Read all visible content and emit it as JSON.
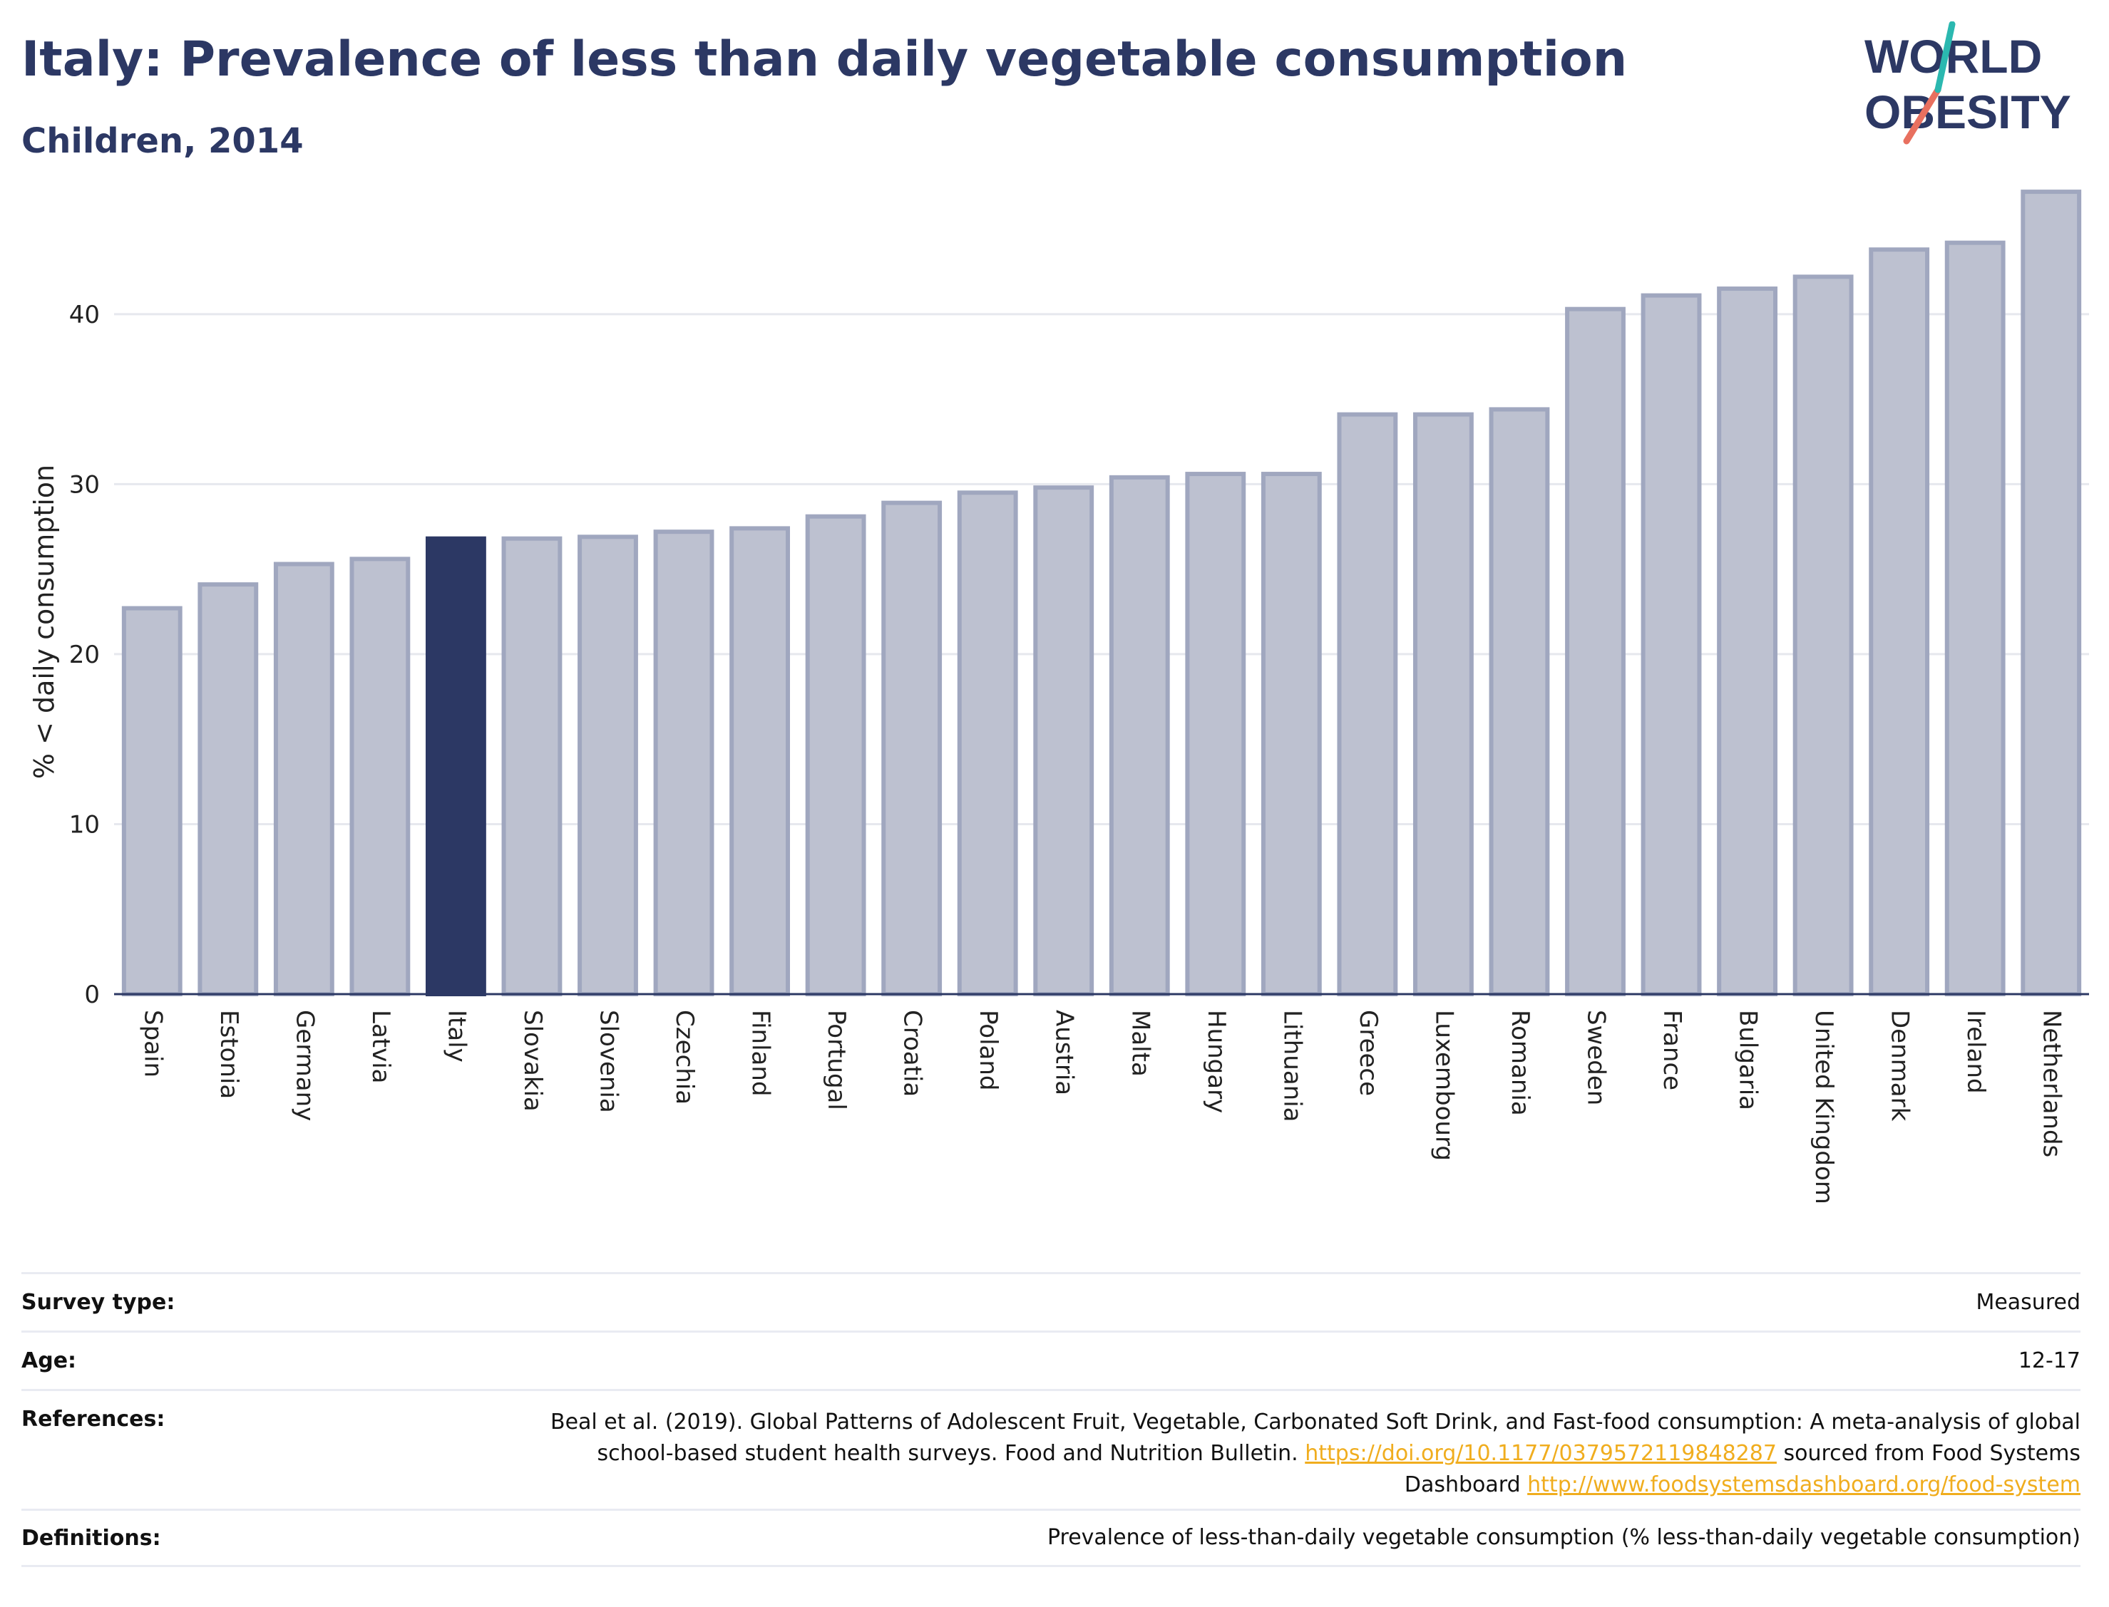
{
  "header": {
    "title": "Italy: Prevalence of less than daily vegetable consumption",
    "subtitle": "Children, 2014"
  },
  "logo": {
    "line1": "WORLD",
    "line2": "OBESITY",
    "navy": "#2c3864",
    "teal": "#2bb8b0",
    "coral": "#e8705f"
  },
  "chart_data": {
    "type": "bar",
    "ylabel": "% < daily consumption",
    "xlabel": "",
    "ylim": [
      0,
      48
    ],
    "yticks": [
      0,
      10,
      20,
      30,
      40
    ],
    "grid": true,
    "highlight": "Italy",
    "colors": {
      "bar": "#bdc1d0",
      "bar_edge": "#a0a7bf",
      "highlight": "#2c3864"
    },
    "categories": [
      "Spain",
      "Estonia",
      "Germany",
      "Latvia",
      "Italy",
      "Slovakia",
      "Slovenia",
      "Czechia",
      "Finland",
      "Portugal",
      "Croatia",
      "Poland",
      "Austria",
      "Malta",
      "Hungary",
      "Lithuania",
      "Greece",
      "Luxembourg",
      "Romania",
      "Sweden",
      "France",
      "Bulgaria",
      "United Kingdom",
      "Denmark",
      "Ireland",
      "Netherlands"
    ],
    "values": [
      22.7,
      24.1,
      25.3,
      25.6,
      26.8,
      26.8,
      26.9,
      27.2,
      27.4,
      28.1,
      28.9,
      29.5,
      29.8,
      30.4,
      30.6,
      30.6,
      34.1,
      34.1,
      34.4,
      40.3,
      41.1,
      41.5,
      42.2,
      43.8,
      44.2,
      47.2
    ]
  },
  "info": {
    "survey_type_label": "Survey type:",
    "survey_type_value": "Measured",
    "age_label": "Age:",
    "age_value": "12-17",
    "references_label": "References:",
    "references_text_1": "Beal et al. (2019). Global Patterns of Adolescent Fruit, Vegetable, Carbonated Soft Drink, and Fast-food consumption: A meta-analysis of global school-based student health surveys. Food and Nutrition Bulletin. ",
    "references_link_1": "https://doi.org/10.1177/0379572119848287",
    "references_text_2": " sourced from Food Systems Dashboard ",
    "references_link_2": "http://www.foodsystemsdashboard.org/food-system",
    "definitions_label": "Definitions:",
    "definitions_value": "Prevalence of less-than-daily vegetable consumption (% less-than-daily vegetable consumption)"
  }
}
